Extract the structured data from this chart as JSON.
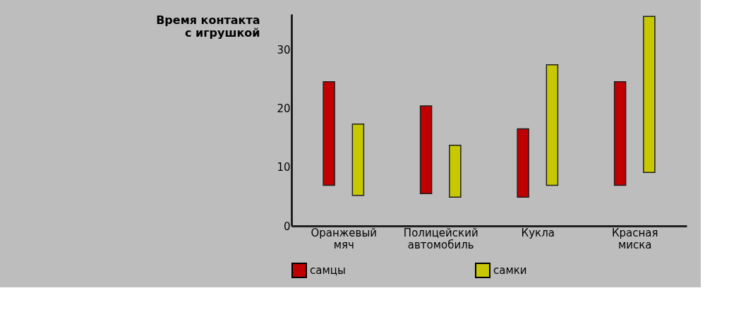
{
  "chart_data": {
    "type": "bar",
    "ylabel": "Время контакта с игрушкой",
    "categories": [
      "Оранжевый мяч",
      "Полицейский автомобиль",
      "Кукла",
      "Красная миска"
    ],
    "series": [
      {
        "name": "самцы",
        "color": "#c00000",
        "base": [
          6.9,
          5.5,
          4.9,
          6.9
        ],
        "values": [
          17.6,
          14.9,
          11.6,
          17.6
        ]
      },
      {
        "name": "самки",
        "color": "#c8c800",
        "base": [
          5.2,
          4.9,
          6.9,
          9.1
        ],
        "values": [
          12.1,
          8.8,
          20.5,
          26.5
        ]
      }
    ],
    "ylim": [
      0,
      36
    ],
    "yticks": [
      0,
      10,
      20,
      30
    ],
    "grid": false,
    "legend": "bottom"
  }
}
